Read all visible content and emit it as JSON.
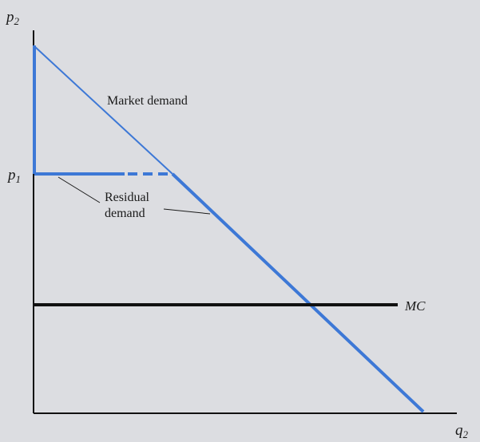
{
  "axes": {
    "y_label_base": "p",
    "y_label_sub": "2",
    "x_label_base": "q",
    "x_label_sub": "2"
  },
  "price_level": {
    "base": "p",
    "sub": "1"
  },
  "curves": {
    "market_demand_label": "Market demand",
    "residual_demand_label_line1": "Residual",
    "residual_demand_label_line2": "demand",
    "mc_label": "MC"
  },
  "colors": {
    "demand": "#3d78d6",
    "mc": "#111111",
    "axis": "#111111",
    "background": "#dcdde1"
  }
}
